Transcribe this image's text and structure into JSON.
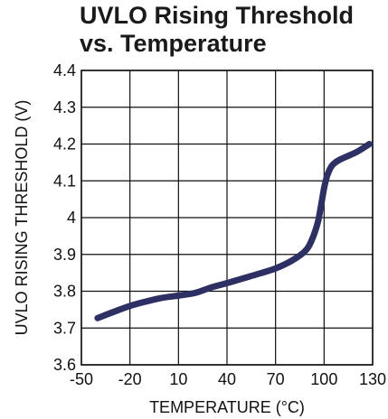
{
  "chart_data": {
    "type": "line",
    "title": "UVLO Rising Threshold",
    "subtitle": "vs. Temperature",
    "xlabel": "TEMPERATURE (°C)",
    "ylabel": "UVLO RISING THRESHOLD (V)",
    "xlim": [
      -50,
      130
    ],
    "ylim": [
      3.6,
      4.4
    ],
    "grid": true,
    "x_ticks": [
      -50,
      -20,
      10,
      40,
      70,
      100,
      130
    ],
    "x_tick_labels": [
      "-50",
      "-20",
      "10",
      "40",
      "70",
      "100",
      "130"
    ],
    "y_ticks": [
      3.6,
      3.7,
      3.8,
      3.9,
      4.0,
      4.1,
      4.2,
      4.3,
      4.4
    ],
    "y_tick_labels": [
      "3.6",
      "3.7",
      "3.8",
      "3.9",
      "4",
      "4.1",
      "4.2",
      "4.3",
      "4.4"
    ],
    "line_color": "#2e2f63",
    "series": [
      {
        "x": [
          -40,
          -30,
          -20,
          -10,
          0,
          10,
          20,
          30,
          40,
          50,
          60,
          70,
          80,
          88,
          92,
          96,
          98,
          100,
          102,
          105,
          110,
          120,
          128
        ],
        "y": [
          3.727,
          3.744,
          3.76,
          3.772,
          3.782,
          3.788,
          3.795,
          3.81,
          3.822,
          3.835,
          3.848,
          3.862,
          3.883,
          3.908,
          3.935,
          3.985,
          4.03,
          4.08,
          4.115,
          4.142,
          4.158,
          4.178,
          4.2
        ]
      }
    ]
  }
}
